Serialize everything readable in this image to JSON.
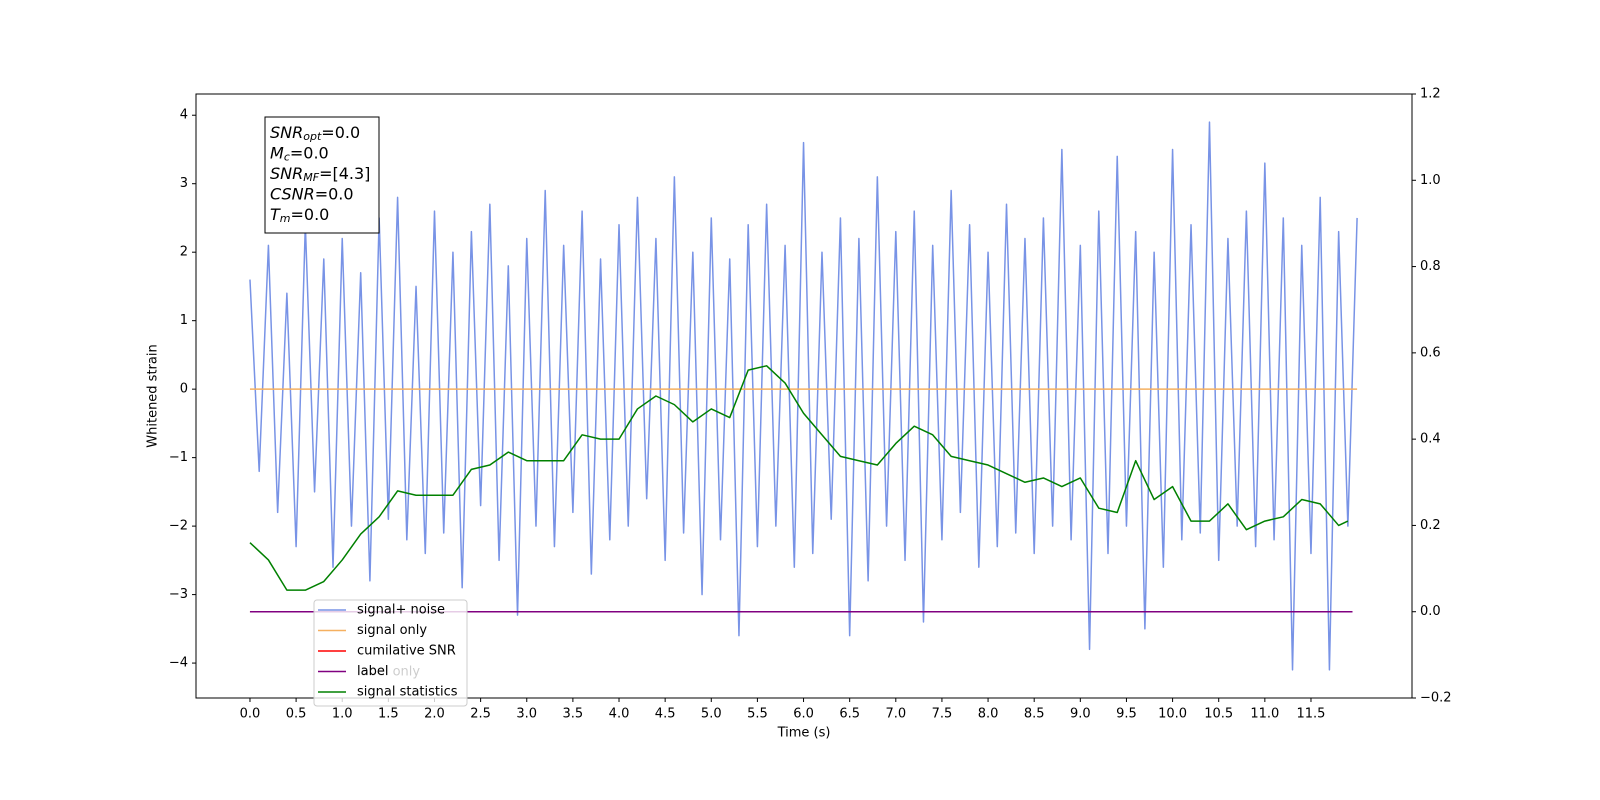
{
  "chart_data": {
    "type": "line",
    "x_label": "Time (s)",
    "y_label": "Whitened strain",
    "xlim": [
      -0.585,
      12.595
    ],
    "ylim": [
      -4.51,
      4.31
    ],
    "y2lim": [
      -0.2,
      1.2
    ],
    "xticks": [
      {
        "value": 0,
        "label": "0.0"
      },
      0.5,
      {
        "value": 1,
        "label": "1.0"
      },
      1.5,
      {
        "value": 2,
        "label": "2.0"
      },
      2.5,
      {
        "value": 3,
        "label": "3.0"
      },
      3.5,
      {
        "value": 4,
        "label": "4.0"
      },
      4.5,
      {
        "value": 5,
        "label": "5.0"
      },
      5.5,
      {
        "value": 6,
        "label": "6.0"
      },
      6.5,
      {
        "value": 7,
        "label": "7.0"
      },
      7.5,
      {
        "value": 8,
        "label": "8.0"
      },
      8.5,
      {
        "value": 9,
        "label": "9.0"
      },
      9.5,
      {
        "value": 10,
        "label": "10.0"
      },
      10.5,
      {
        "value": 11,
        "label": "11.0"
      },
      11.5
    ],
    "yticks": [
      {
        "value": -4,
        "label": "−4"
      },
      {
        "value": -3,
        "label": "−3"
      },
      {
        "value": -2,
        "label": "−2"
      },
      {
        "value": -1,
        "label": "−1"
      },
      0,
      1,
      2,
      3,
      4
    ],
    "y2ticks": [
      {
        "value": -0.2,
        "label": "−0.2"
      },
      {
        "value": 0,
        "label": "0.0"
      },
      0.2,
      0.4,
      0.6,
      0.8,
      {
        "value": 1,
        "label": "1.0"
      },
      1.2
    ],
    "grid": false,
    "legend": "lower left",
    "hidden_legend_text": "label only",
    "text_box": [
      {
        "name": "SNR",
        "sub": "opt",
        "text": "=0.0"
      },
      {
        "name": "M",
        "sub": "c",
        "text": "=0.0"
      },
      {
        "name": "SNR",
        "sub": "MF",
        "text": "=[4.3]"
      },
      {
        "name": "CSNR",
        "text": "=0.0"
      },
      {
        "name": "T",
        "sub": "m",
        "text": "=0.0"
      }
    ],
    "series": [
      {
        "name": "signal+ noise",
        "color": "#7893e6",
        "x": [
          0,
          0.1,
          0.2,
          0.3,
          0.4,
          0.5,
          0.6,
          0.7,
          0.8,
          0.9,
          1,
          1.1,
          1.2,
          1.3,
          1.4,
          1.5,
          1.6,
          1.7,
          1.8,
          1.9,
          2,
          2.1,
          2.2,
          2.3,
          2.4,
          2.5,
          2.6,
          2.7,
          2.8,
          2.9,
          3,
          3.1,
          3.2,
          3.3,
          3.4,
          3.5,
          3.6,
          3.7,
          3.8,
          3.9,
          4,
          4.1,
          4.2,
          4.3,
          4.4,
          4.5,
          4.6,
          4.7,
          4.8,
          4.9,
          5,
          5.1,
          5.2,
          5.3,
          5.4,
          5.5,
          5.6,
          5.7,
          5.8,
          5.9,
          6,
          6.1,
          6.2,
          6.3,
          6.4,
          6.5,
          6.6,
          6.7,
          6.8,
          6.9,
          7,
          7.1,
          7.2,
          7.3,
          7.4,
          7.5,
          7.6,
          7.7,
          7.8,
          7.9,
          8,
          8.1,
          8.2,
          8.3,
          8.4,
          8.5,
          8.6,
          8.7,
          8.8,
          8.9,
          9,
          9.1,
          9.2,
          9.3,
          9.4,
          9.5,
          9.6,
          9.7,
          9.8,
          9.9,
          10,
          10.1,
          10.2,
          10.3,
          10.4,
          10.5,
          10.6,
          10.7,
          10.8,
          10.9,
          11,
          11.1,
          11.2,
          11.3,
          11.4,
          11.5,
          11.6,
          11.7,
          11.8,
          11.9,
          12
        ],
        "values": [
          1.6,
          -1.2,
          2.1,
          -1.8,
          1.4,
          -2.3,
          2.4,
          -1.5,
          1.9,
          -2.6,
          2.2,
          -2.0,
          1.7,
          -2.8,
          2.5,
          -1.9,
          2.8,
          -2.2,
          1.5,
          -2.4,
          2.6,
          -2.1,
          2.0,
          -2.9,
          2.3,
          -1.7,
          2.7,
          -2.5,
          1.8,
          -3.3,
          2.2,
          -2.0,
          2.9,
          -2.3,
          2.1,
          -1.8,
          2.6,
          -2.7,
          1.9,
          -2.2,
          2.4,
          -2.0,
          2.8,
          -1.6,
          2.2,
          -2.5,
          3.1,
          -2.1,
          2.0,
          -3.0,
          2.5,
          -2.2,
          1.9,
          -3.6,
          2.4,
          -2.3,
          2.7,
          -2.0,
          2.1,
          -2.6,
          3.6,
          -2.4,
          2.0,
          -1.9,
          2.5,
          -3.6,
          2.2,
          -2.8,
          3.1,
          -2.0,
          2.3,
          -2.5,
          2.6,
          -3.4,
          2.1,
          -2.2,
          2.9,
          -1.8,
          2.4,
          -2.6,
          2.0,
          -2.3,
          2.7,
          -2.1,
          2.2,
          -2.4,
          2.5,
          -2.0,
          3.5,
          -2.2,
          2.1,
          -3.8,
          2.6,
          -2.4,
          3.4,
          -2.0,
          2.3,
          -3.5,
          2.0,
          -2.6,
          3.5,
          -2.2,
          2.4,
          -2.1,
          3.9,
          -2.5,
          2.2,
          -2.0,
          2.6,
          -2.3,
          3.3,
          -2.2,
          2.5,
          -4.1,
          2.1,
          -2.4,
          2.8,
          -4.1,
          2.3,
          -2.0,
          2.5
        ]
      },
      {
        "name": "signal only",
        "color": "#f5b060",
        "x": [
          0,
          12
        ],
        "values": [
          0,
          0
        ]
      },
      {
        "name": "cumilative SNR",
        "color": "#ff0000",
        "axis": "y2",
        "x": [
          0,
          11.95
        ],
        "values": [
          0,
          0
        ]
      },
      {
        "name": "label",
        "color": "#800080",
        "axis": "y2",
        "x": [
          0,
          11.95
        ],
        "values": [
          0,
          0
        ]
      },
      {
        "name": "signal statistics",
        "color": "#008000",
        "axis": "y2",
        "x": [
          0,
          0.2,
          0.4,
          0.6,
          0.8,
          1,
          1.2,
          1.4,
          1.6,
          1.8,
          2,
          2.2,
          2.4,
          2.6,
          2.8,
          3,
          3.2,
          3.4,
          3.6,
          3.8,
          4,
          4.2,
          4.4,
          4.6,
          4.8,
          5,
          5.2,
          5.4,
          5.6,
          5.8,
          6,
          6.2,
          6.4,
          6.6,
          6.8,
          7,
          7.2,
          7.4,
          7.6,
          7.8,
          8,
          8.2,
          8.4,
          8.6,
          8.8,
          9,
          9.2,
          9.4,
          9.6,
          9.8,
          10,
          10.2,
          10.4,
          10.6,
          10.8,
          11,
          11.2,
          11.4,
          11.6,
          11.8,
          11.9
        ],
        "values": [
          0.16,
          0.12,
          0.05,
          0.05,
          0.07,
          0.12,
          0.18,
          0.22,
          0.28,
          0.27,
          0.27,
          0.27,
          0.33,
          0.34,
          0.37,
          0.35,
          0.35,
          0.35,
          0.41,
          0.4,
          0.4,
          0.47,
          0.5,
          0.48,
          0.44,
          0.47,
          0.45,
          0.56,
          0.57,
          0.53,
          0.46,
          0.41,
          0.36,
          0.35,
          0.34,
          0.39,
          0.43,
          0.41,
          0.36,
          0.35,
          0.34,
          0.32,
          0.3,
          0.31,
          0.29,
          0.31,
          0.24,
          0.23,
          0.35,
          0.26,
          0.29,
          0.21,
          0.21,
          0.25,
          0.19,
          0.21,
          0.22,
          0.26,
          0.25,
          0.2,
          0.21
        ]
      }
    ]
  }
}
